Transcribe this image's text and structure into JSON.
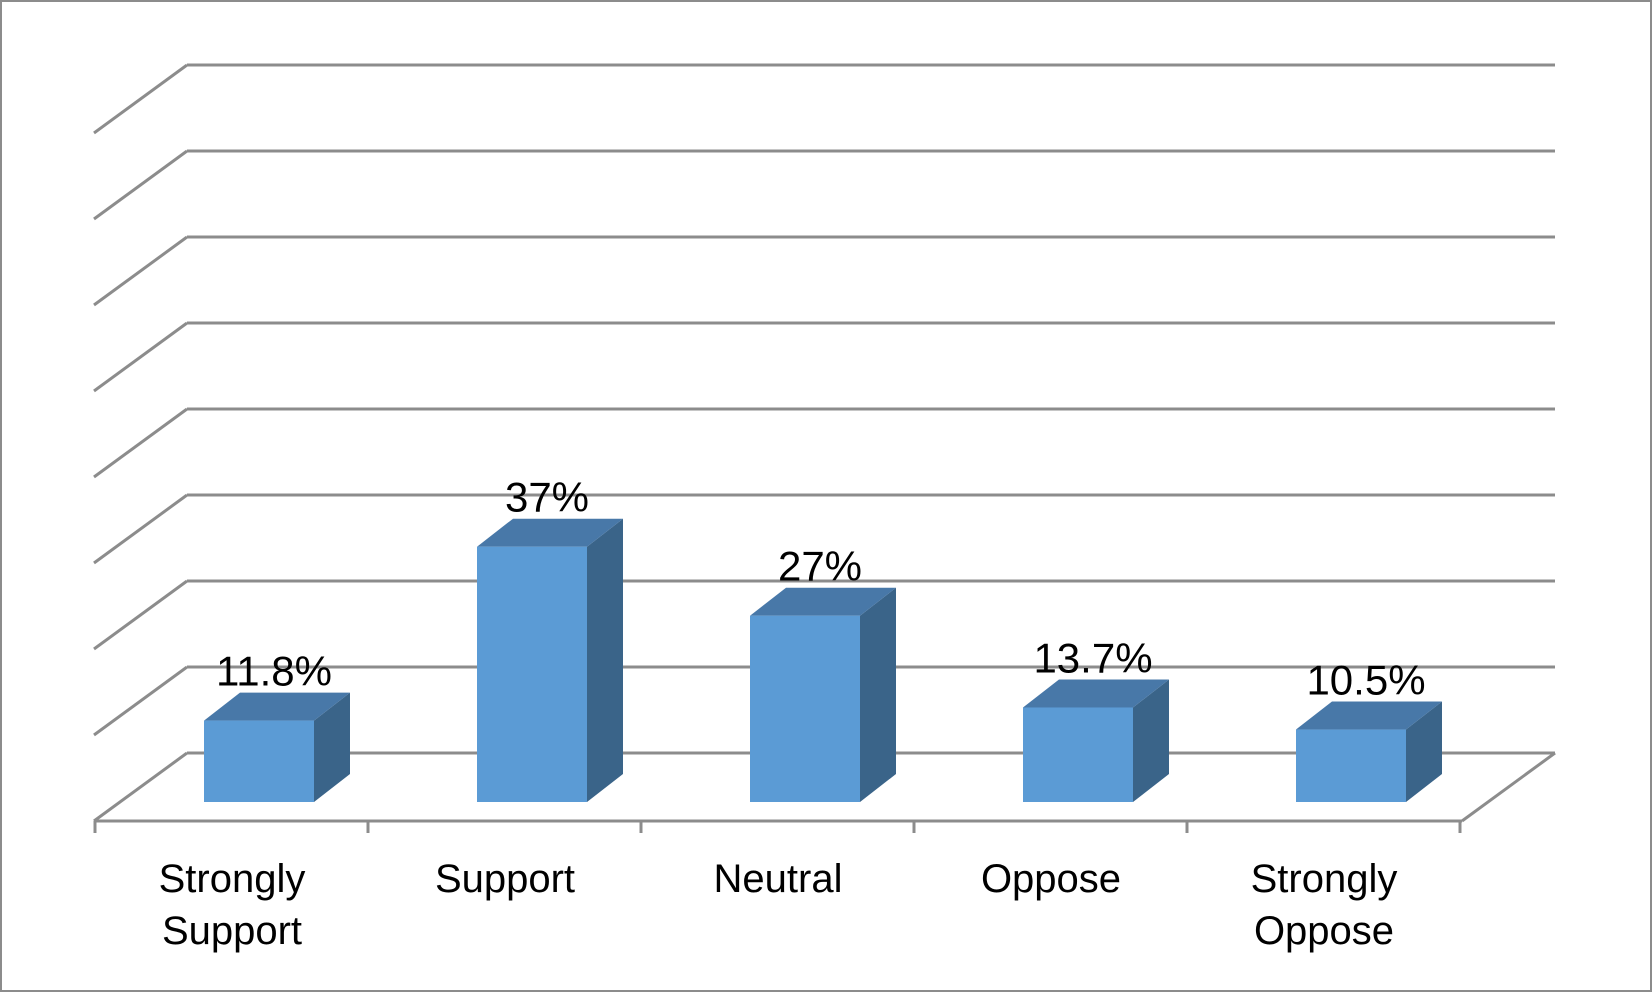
{
  "chart_data": {
    "type": "bar",
    "style": "3d-column",
    "categories": [
      "Strongly Support",
      "Support",
      "Neutral",
      "Oppose",
      "Strongly Oppose"
    ],
    "category_lines": [
      [
        "Strongly",
        "Support"
      ],
      [
        "Support"
      ],
      [
        "Neutral"
      ],
      [
        "Oppose"
      ],
      [
        "Strongly",
        "Oppose"
      ]
    ],
    "values": [
      11.8,
      37,
      27,
      13.7,
      10.5
    ],
    "data_labels": [
      "11.8%",
      "37%",
      "27%",
      "13.7%",
      "10.5%"
    ],
    "title": "",
    "xlabel": "",
    "ylabel": "",
    "ylim": [
      0,
      45
    ],
    "grid": true,
    "legend": "none",
    "colors": {
      "bar_front": "#5b9bd5",
      "bar_top": "#4878a8",
      "bar_side": "#3a6489",
      "grid": "#8c8c8c"
    }
  }
}
